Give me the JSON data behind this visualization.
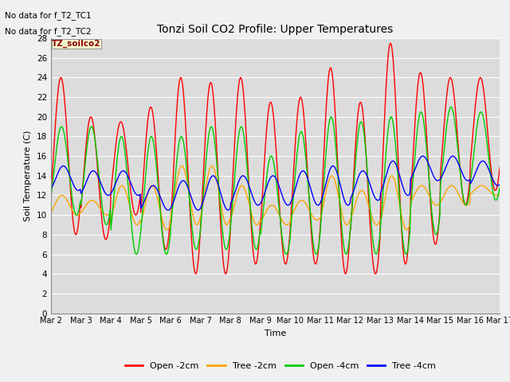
{
  "title": "Tonzi Soil CO2 Profile: Upper Temperatures",
  "xlabel": "Time",
  "ylabel": "Soil Temperature (C)",
  "no_data_text": [
    "No data for f_T2_TC1",
    "No data for f_T2_TC2"
  ],
  "legend_label": "TZ_soilco2",
  "legend_entries": [
    "Open -2cm",
    "Tree -2cm",
    "Open -4cm",
    "Tree -4cm"
  ],
  "legend_colors": [
    "#ff0000",
    "#ffa500",
    "#00cc00",
    "#0000ff"
  ],
  "ylim": [
    0,
    28
  ],
  "yticks": [
    0,
    2,
    4,
    6,
    8,
    10,
    12,
    14,
    16,
    18,
    20,
    22,
    24,
    26,
    28
  ],
  "bg_color": "#dcdcdc",
  "fig_bg_color": "#f0f0f0",
  "grid_color": "#ffffff",
  "num_days": 15,
  "start_day": 2,
  "red_peaks": [
    24,
    20,
    19.5,
    21,
    24,
    23.5,
    24,
    21.5,
    22,
    25,
    21.5,
    27.5,
    24.5,
    24,
    24
  ],
  "red_troughs": [
    8,
    7.5,
    10,
    6.5,
    4,
    4,
    5,
    5,
    5,
    4,
    4,
    5,
    7,
    11,
    12.5
  ],
  "orange_peaks": [
    12,
    11.5,
    13,
    13,
    15,
    15,
    13,
    11,
    11.5,
    14,
    12.5,
    14,
    13,
    13,
    13
  ],
  "orange_troughs": [
    10,
    10,
    9,
    8.5,
    9,
    9,
    9,
    9,
    9.5,
    9,
    9,
    8.5,
    11,
    11,
    12
  ],
  "green_peaks": [
    19,
    19,
    18,
    18,
    18,
    19,
    19,
    16,
    18.5,
    20,
    19.5,
    20,
    20.5,
    21,
    20.5
  ],
  "green_troughs": [
    10,
    9,
    6,
    6,
    6.5,
    6.5,
    6.5,
    6,
    6,
    6,
    6,
    6,
    8,
    11,
    11.5
  ],
  "blue_peaks": [
    15,
    14.5,
    14.5,
    13,
    13.5,
    14,
    14,
    14,
    14.5,
    15,
    14.5,
    15.5,
    16,
    16,
    15.5
  ],
  "blue_troughs": [
    12.5,
    12,
    12,
    10.5,
    10.5,
    10.5,
    11,
    11,
    11,
    11,
    11.5,
    12,
    13.5,
    13.5,
    13
  ],
  "pts_per_day": 48,
  "red_phase": 0.08,
  "orange_phase": 0.12,
  "green_phase": 0.1,
  "blue_phase": 0.16
}
